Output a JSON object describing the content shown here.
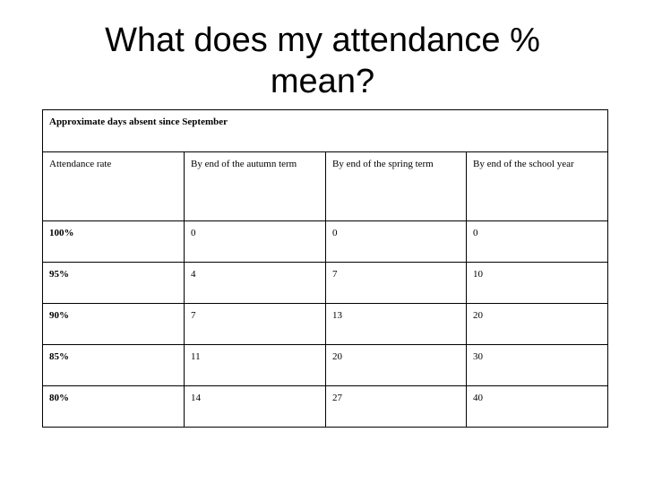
{
  "slide": {
    "title": "What does my attendance % mean?"
  },
  "table": {
    "caption": "Approximate days absent since September",
    "headers": [
      "Attendance rate",
      "By end of the autumn term",
      "By end of the spring term",
      "By end of the school year"
    ],
    "rows": [
      {
        "rate": "100%",
        "autumn": "0",
        "spring": "0",
        "year": "0"
      },
      {
        "rate": "95%",
        "autumn": "4",
        "spring": "7",
        "year": "10"
      },
      {
        "rate": "90%",
        "autumn": "7",
        "spring": "13",
        "year": "20"
      },
      {
        "rate": "85%",
        "autumn": "11",
        "spring": "20",
        "year": "30"
      },
      {
        "rate": "80%",
        "autumn": "14",
        "spring": "27",
        "year": "40"
      }
    ]
  }
}
